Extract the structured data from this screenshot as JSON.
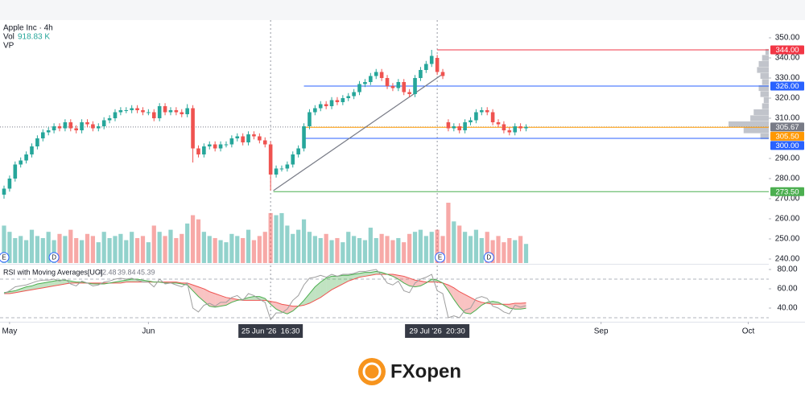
{
  "chart_data": {
    "type": "candlestick",
    "title": "Apple Inc · 4h",
    "up_color": "#26a69a",
    "down_color": "#ef5350",
    "xlim": [
      -0.725,
      137.7
    ],
    "ylim": [
      238,
      358.8
    ],
    "yticks": [
      {
        "value": 240,
        "label": "240.00"
      },
      {
        "value": 250,
        "label": "250.00"
      },
      {
        "value": 260,
        "label": "260.00"
      },
      {
        "value": 270,
        "label": "270.00"
      },
      {
        "value": 280,
        "label": "280.00"
      },
      {
        "value": 290,
        "label": "290.00"
      },
      {
        "value": 310,
        "label": "310.00"
      },
      {
        "value": 320,
        "label": "320.00"
      },
      {
        "value": 330,
        "label": "330.00"
      },
      {
        "value": 340,
        "label": "340.00"
      },
      {
        "value": 350,
        "label": "350.00"
      }
    ],
    "xticks": [
      {
        "value": 1,
        "label": "May"
      },
      {
        "value": 26,
        "label": "Jun"
      },
      {
        "value": 107.5,
        "label": "Sep"
      },
      {
        "value": 134,
        "label": "Oct"
      }
    ],
    "crosshairs": [
      {
        "value": 48,
        "label": "25 Jun '26  16:30"
      },
      {
        "value": 78,
        "label": "29 Jul '26  20:30"
      }
    ],
    "open": [
      272,
      275,
      280,
      287,
      289,
      292,
      296,
      300,
      303,
      304,
      306,
      305,
      308,
      305,
      304,
      308,
      307,
      305,
      306,
      309,
      310,
      313,
      314,
      314,
      315,
      314,
      313,
      313,
      310,
      316,
      313,
      314,
      313,
      312,
      315,
      295,
      292,
      296,
      297,
      295,
      297,
      297,
      300,
      301,
      298,
      302,
      301,
      299,
      297,
      282,
      285,
      285,
      287,
      292,
      295,
      306,
      313,
      315,
      317,
      316,
      319,
      318,
      320,
      321,
      323,
      327,
      328,
      331,
      333,
      330,
      326,
      325,
      328,
      323,
      322,
      330,
      334,
      337,
      340,
      333,
      308,
      305,
      306,
      304,
      308,
      309,
      313,
      314,
      313,
      308,
      307,
      304,
      303,
      306,
      305
    ],
    "high": [
      276.5,
      281.5,
      288.5,
      290.5,
      293.5,
      297.5,
      301.5,
      304.5,
      305.5,
      307.5,
      307.5,
      309.5,
      309.5,
      306.5,
      309.5,
      309.5,
      308.5,
      307.5,
      310.5,
      311.5,
      314.5,
      315.5,
      315.5,
      316.5,
      316.5,
      315.5,
      314.5,
      314.5,
      317.5,
      317.5,
      315.5,
      315.5,
      314.5,
      317,
      316.5,
      296.5,
      297.5,
      298.5,
      298.5,
      298.5,
      298.5,
      301.5,
      302.5,
      302.5,
      303.5,
      303.5,
      302.5,
      300.5,
      298.5,
      286.5,
      286.5,
      288.5,
      293.5,
      296.5,
      307.5,
      314.5,
      316.5,
      318.5,
      318.5,
      320.5,
      320.5,
      321.5,
      322.5,
      324.5,
      328.5,
      329.5,
      332.5,
      334.5,
      334.5,
      331.5,
      327.5,
      329.5,
      329.5,
      324.5,
      331.5,
      335.5,
      338.5,
      344,
      341.5,
      334.5,
      309.5,
      307.5,
      307.5,
      309.5,
      310.5,
      314.5,
      315.5,
      315.5,
      314.5,
      309.5,
      308.5,
      305.5,
      307.5,
      307.5,
      307
    ],
    "low": [
      270,
      273.5,
      278.5,
      285.5,
      287.5,
      290.5,
      294.5,
      298.5,
      301.5,
      302.5,
      303.5,
      303.5,
      303.5,
      302.5,
      302.5,
      305.5,
      303.5,
      303.5,
      304.5,
      307.5,
      308.5,
      311.5,
      312.5,
      312.5,
      312.5,
      311.5,
      311.5,
      308.5,
      308.5,
      311.5,
      311.5,
      311.5,
      310.5,
      310.5,
      288,
      290.5,
      290.5,
      294.5,
      293.5,
      293.5,
      295.5,
      295.5,
      298.5,
      296.5,
      296.5,
      299.5,
      297.5,
      295.5,
      274,
      280.5,
      283.5,
      283.5,
      285.5,
      290.5,
      293.5,
      304.5,
      311.5,
      313.5,
      314.5,
      314.5,
      316.5,
      316.5,
      318.5,
      319.5,
      321.5,
      325.5,
      326.5,
      329.5,
      328.5,
      324.5,
      323.5,
      323.5,
      321.5,
      320.5,
      320.5,
      328.5,
      332.5,
      335.5,
      331.5,
      329.5,
      303.5,
      303.5,
      302.5,
      302.5,
      306.5,
      307.5,
      311.5,
      311.5,
      306.5,
      305.5,
      302.5,
      301.5,
      301.5,
      303.5,
      303.5
    ],
    "close": [
      275,
      280,
      287,
      289,
      292,
      296,
      300,
      303,
      304,
      306,
      305,
      308,
      305,
      304,
      308,
      307,
      305,
      306,
      309,
      310,
      313,
      314,
      314,
      315,
      314,
      313,
      313,
      310,
      316,
      313,
      314,
      313,
      312,
      315,
      295,
      292,
      296,
      297,
      295,
      297,
      297,
      300,
      301,
      298,
      302,
      301,
      299,
      297,
      282,
      285,
      285,
      287,
      292,
      295,
      306,
      313,
      315,
      317,
      316,
      319,
      318,
      320,
      321,
      323,
      327,
      328,
      331,
      333,
      330,
      326,
      325,
      328,
      323,
      322,
      330,
      334,
      337,
      341,
      333,
      331,
      305,
      306,
      304,
      308,
      309,
      313,
      314,
      313,
      308,
      307,
      304,
      303,
      306,
      305,
      305.67
    ],
    "volume": {
      "name": "Vol",
      "last_label": "918.83 K",
      "color": "#26a69a",
      "values": [
        1800,
        1500,
        1200,
        1300,
        1100,
        1600,
        1300,
        1200,
        1500,
        1100,
        1400,
        1300,
        1600,
        1200,
        1100,
        1400,
        1300,
        1000,
        1500,
        1200,
        1300,
        1400,
        1100,
        1500,
        1200,
        1300,
        1000,
        1800,
        1500,
        1300,
        1600,
        1200,
        1400,
        1900,
        2300,
        2100,
        1500,
        1300,
        1200,
        1100,
        1000,
        1400,
        1300,
        1200,
        1600,
        1100,
        1300,
        1500,
        2400,
        2300,
        2400,
        1800,
        1400,
        1600,
        2100,
        1500,
        1300,
        1200,
        1400,
        1100,
        1200,
        1000,
        1500,
        1300,
        1200,
        1100,
        1700,
        1200,
        1400,
        1300,
        1100,
        1200,
        1000,
        1400,
        1500,
        1600,
        1300,
        1500,
        1600,
        1300,
        2900,
        2000,
        1800,
        1500,
        1300,
        1600,
        1200,
        1500,
        1100,
        1300,
        1000,
        1200,
        1100,
        1300,
        918.83
      ]
    },
    "volume_profile": {
      "name": "VP",
      "color": "#b2b5be",
      "prices": [
        343,
        340,
        337,
        334,
        331,
        328,
        325,
        322,
        319,
        316,
        313,
        310,
        307,
        304,
        301
      ],
      "values": [
        4,
        8,
        12,
        14,
        10,
        8,
        12,
        10,
        6,
        8,
        18,
        22,
        48,
        30,
        10
      ]
    },
    "levels": [
      {
        "value": 344,
        "label": "344.00",
        "color": "#f23645",
        "from": 78
      },
      {
        "value": 326,
        "label": "326.00",
        "color": "#2962ff",
        "from": 54
      },
      {
        "value": 305.67,
        "label": "305.67",
        "color": "#787b86",
        "from": -0.725,
        "dashed": true
      },
      {
        "value": 305.5,
        "label": "305.50",
        "color": "#ff9800",
        "from": 54
      },
      {
        "value": 300,
        "label": "300.00",
        "color": "#2962ff",
        "from": 54
      },
      {
        "value": 273.5,
        "label": "273.50",
        "color": "#4caf50",
        "from": 48.5
      }
    ],
    "trendline": {
      "x": [
        48.5,
        79
      ],
      "y": [
        274,
        332
      ],
      "color": "#787b86"
    },
    "events": [
      {
        "value": 0,
        "label": "E"
      },
      {
        "value": 9,
        "label": "D"
      },
      {
        "value": 78.5,
        "label": "E"
      },
      {
        "value": 87.3,
        "label": "D"
      }
    ],
    "rsi_ylim": [
      27.5,
      84.2
    ],
    "rsi_yticks": [
      {
        "value": 40,
        "label": "40.00"
      },
      {
        "value": 60,
        "label": "60.00"
      },
      {
        "value": 80,
        "label": "80.00"
      }
    ],
    "rsi_bands": [
      30,
      70
    ],
    "rsi": {
      "name": "RSI with Moving Averages[UO]",
      "color": "#9e9e9e",
      "values": [
        55,
        58,
        62,
        63,
        64,
        66,
        68,
        69,
        69,
        70,
        68,
        70,
        65,
        63,
        68,
        66,
        63,
        64,
        67,
        68,
        70,
        71,
        70,
        71,
        69,
        67,
        67,
        62,
        70,
        65,
        66,
        64,
        62,
        66,
        40,
        36,
        43,
        45,
        42,
        46,
        46,
        51,
        53,
        48,
        55,
        53,
        49,
        46,
        28,
        35,
        35,
        39,
        48,
        53,
        64,
        71,
        72,
        74,
        72,
        75,
        73,
        75,
        75,
        76,
        78,
        78,
        79,
        80,
        74,
        66,
        64,
        68,
        58,
        56,
        66,
        70,
        72,
        75,
        58,
        55,
        30,
        32,
        30,
        38,
        40,
        50,
        52,
        50,
        42,
        40,
        36,
        34,
        43,
        41,
        42.48
      ]
    },
    "rsi_ma_fast": {
      "color": "#4caf50",
      "values": [
        56,
        57,
        58,
        60,
        62,
        63,
        65,
        66,
        67,
        68,
        69,
        69,
        68,
        67,
        67,
        66,
        65,
        65,
        65,
        66,
        67,
        68,
        69,
        70,
        70,
        69,
        68,
        67,
        67,
        66,
        66,
        66,
        65,
        64,
        58,
        52,
        47,
        42,
        41,
        42,
        43,
        46,
        48,
        49,
        51,
        52,
        52,
        50,
        44,
        39,
        36,
        34,
        37,
        42,
        48,
        55,
        62,
        67,
        71,
        73,
        73,
        74,
        74,
        75,
        76,
        77,
        77,
        78,
        77,
        75,
        73,
        70,
        66,
        63,
        62,
        63,
        66,
        70,
        69,
        66,
        58,
        49,
        41,
        35,
        34,
        38,
        43,
        46,
        47,
        46,
        43,
        40,
        39,
        39,
        39.84
      ]
    },
    "rsi_ma_slow": {
      "color": "#ef5350",
      "values": [
        55,
        55,
        56,
        57,
        58,
        59,
        60,
        61,
        62,
        63,
        64,
        65,
        66,
        66,
        66,
        66,
        66,
        66,
        66,
        66,
        66,
        66,
        67,
        67,
        67,
        67,
        67,
        67,
        67,
        67,
        67,
        67,
        66,
        66,
        64,
        62,
        60,
        57,
        55,
        53,
        51,
        50,
        49,
        48,
        48,
        48,
        48,
        48,
        47,
        46,
        44,
        43,
        42,
        42,
        43,
        45,
        48,
        51,
        55,
        59,
        62,
        65,
        68,
        70,
        72,
        73,
        74,
        75,
        75,
        75,
        75,
        74,
        73,
        71,
        69,
        68,
        67,
        67,
        67,
        66,
        64,
        61,
        57,
        54,
        51,
        48,
        46,
        45,
        44,
        44,
        44,
        44,
        45,
        45,
        45.39
      ]
    }
  },
  "logo": {
    "text": "FXopen"
  }
}
